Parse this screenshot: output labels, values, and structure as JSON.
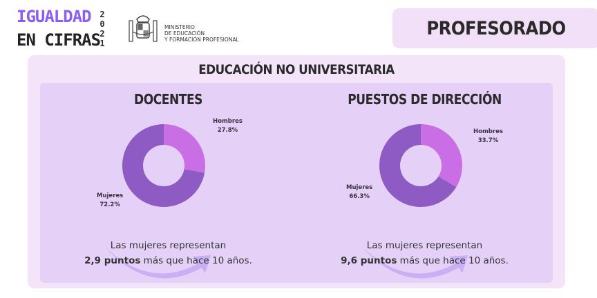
{
  "header": {
    "brand_line1": "IGUALDAD",
    "brand_line2": "EN CIFRAS",
    "year_digits": [
      "2",
      "0",
      "2",
      "1"
    ],
    "ministry_lines": [
      "MINISTERIO",
      "DE EDUCACIÓN",
      "Y FORMACIÓN PROFESIONAL"
    ],
    "section_title": "PROFESORADO"
  },
  "panel": {
    "title": "EDUCACIÓN NO UNIVERSITARIA"
  },
  "colors": {
    "mujeres": "#8e5bc4",
    "hombres": "#c96ee4",
    "outer_bg": "#f3e4fa",
    "inner_bg": "#e5d0f8",
    "arrow": "#c4a6f4"
  },
  "chart_data": [
    {
      "type": "pie",
      "title": "DOCENTES",
      "categories": [
        "Hombres",
        "Mujeres"
      ],
      "values": [
        27.8,
        72.2
      ],
      "labels": [
        "27.8%",
        "72.2%"
      ],
      "donut": true
    },
    {
      "type": "pie",
      "title": "PUESTOS DE DIRECCIÓN",
      "categories": [
        "Hombres",
        "Mujeres"
      ],
      "values": [
        33.7,
        66.3
      ],
      "labels": [
        "33.7%",
        "66.3%"
      ],
      "donut": true
    }
  ],
  "notes": [
    {
      "line1": "Las mujeres representan",
      "bold": "2,9 puntos",
      "rest": " más que hace 10 años."
    },
    {
      "line1": "Las mujeres representan",
      "bold": "9,6 puntos",
      "rest": " más que hace 10 años."
    }
  ]
}
